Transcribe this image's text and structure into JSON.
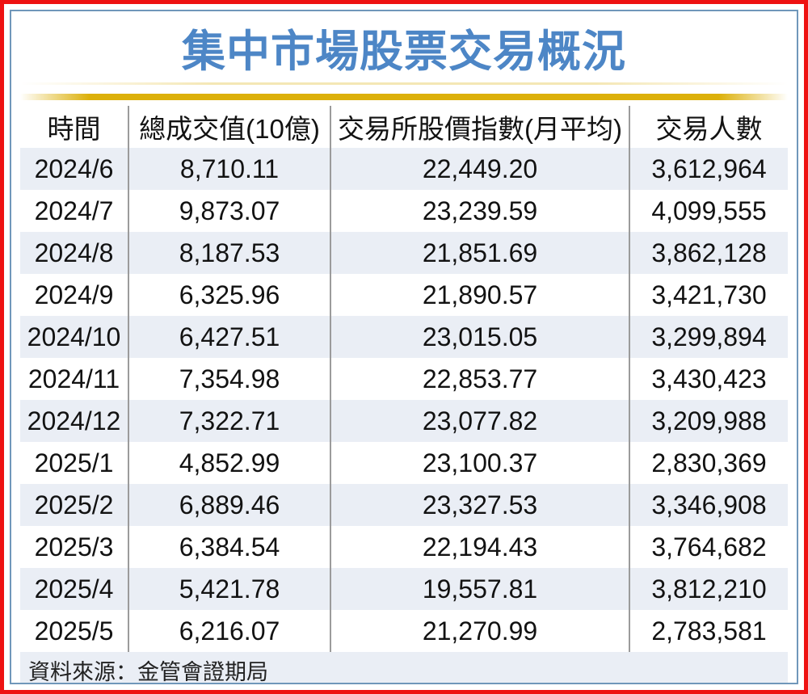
{
  "title": "集中市場股票交易概況",
  "colors": {
    "title_color": "#4d86c6",
    "frame_outer": "#ee1212",
    "frame_inner": "#7097ba",
    "accent_gold": "#dcb00a",
    "row_stripe": "#eaeef5",
    "divider": "#9b9b9b"
  },
  "chart_data": {
    "type": "table",
    "title": "集中市場股票交易概況",
    "columns": [
      "時間",
      "總成交值(10億)",
      "交易所股價指數(月平均)",
      "交易人數"
    ],
    "rows": [
      [
        "2024/6",
        "8,710.11",
        "22,449.20",
        "3,612,964"
      ],
      [
        "2024/7",
        "9,873.07",
        "23,239.59",
        "4,099,555"
      ],
      [
        "2024/8",
        "8,187.53",
        "21,851.69",
        "3,862,128"
      ],
      [
        "2024/9",
        "6,325.96",
        "21,890.57",
        "3,421,730"
      ],
      [
        "2024/10",
        "6,427.51",
        "23,015.05",
        "3,299,894"
      ],
      [
        "2024/11",
        "7,354.98",
        "22,853.77",
        "3,430,423"
      ],
      [
        "2024/12",
        "7,322.71",
        "23,077.82",
        "3,209,988"
      ],
      [
        "2025/1",
        "4,852.99",
        "23,100.37",
        "2,830,369"
      ],
      [
        "2025/2",
        "6,889.46",
        "23,327.53",
        "3,346,908"
      ],
      [
        "2025/3",
        "6,384.54",
        "22,194.43",
        "3,764,682"
      ],
      [
        "2025/4",
        "5,421.78",
        "19,557.81",
        "3,812,210"
      ],
      [
        "2025/5",
        "6,216.07",
        "21,270.99",
        "2,783,581"
      ]
    ],
    "source": "資料來源：金管會證期局"
  }
}
